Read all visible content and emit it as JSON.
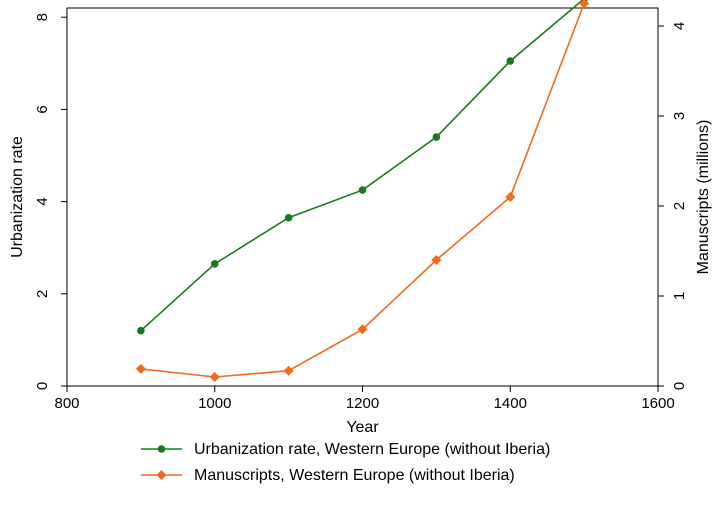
{
  "chart_data": {
    "type": "line",
    "xlabel": "Year",
    "ylabel_left": "Urbanization rate",
    "ylabel_right": "Manuscripts (millions)",
    "xlim": [
      800,
      1600
    ],
    "ylim_left": [
      0,
      8.2
    ],
    "ylim_right": [
      0,
      4.2
    ],
    "x_ticks": [
      800,
      1000,
      1200,
      1400,
      1600
    ],
    "y_left_ticks": [
      0,
      2,
      4,
      6,
      8
    ],
    "y_right_ticks": [
      0,
      1,
      2,
      3,
      4
    ],
    "grid": false,
    "legend_position": "bottom",
    "series": [
      {
        "name": "Urbanization rate, Western Europe (without Iberia)",
        "axis": "left",
        "color": "#1a7a1a",
        "marker": "circle",
        "x": [
          900,
          1000,
          1100,
          1200,
          1300,
          1400,
          1500
        ],
        "values": [
          1.2,
          2.65,
          3.65,
          4.25,
          5.4,
          7.05,
          8.4
        ]
      },
      {
        "name": "Manuscripts, Western Europe (without Iberia)",
        "axis": "right",
        "color": "#f26a1b",
        "marker": "diamond",
        "x": [
          900,
          1000,
          1100,
          1200,
          1300,
          1400,
          1500
        ],
        "values": [
          0.19,
          0.1,
          0.17,
          0.63,
          1.4,
          2.1,
          4.25
        ]
      }
    ]
  }
}
